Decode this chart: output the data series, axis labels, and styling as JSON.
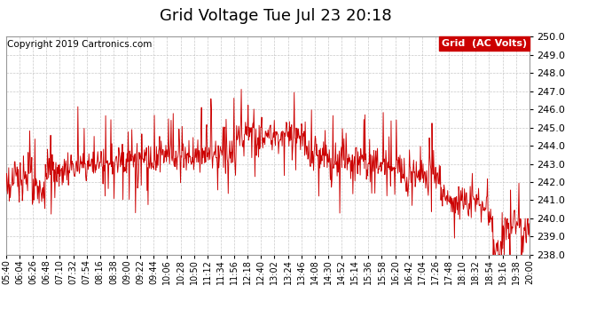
{
  "title": "Grid Voltage Tue Jul 23 20:18",
  "copyright": "Copyright 2019 Cartronics.com",
  "legend_label": "Grid  (AC Volts)",
  "legend_bg": "#cc0000",
  "legend_text_color": "#ffffff",
  "line_color": "#cc0000",
  "bg_color": "#ffffff",
  "plot_bg_color": "#ffffff",
  "grid_color": "#bbbbbb",
  "ylim": [
    238.0,
    250.0
  ],
  "yticks": [
    238.0,
    239.0,
    240.0,
    241.0,
    242.0,
    243.0,
    244.0,
    245.0,
    246.0,
    247.0,
    248.0,
    249.0,
    250.0
  ],
  "xtick_labels": [
    "05:40",
    "06:04",
    "06:26",
    "06:48",
    "07:10",
    "07:32",
    "07:54",
    "08:16",
    "08:38",
    "09:00",
    "09:22",
    "09:44",
    "10:06",
    "10:28",
    "10:50",
    "11:12",
    "11:34",
    "11:56",
    "12:18",
    "12:40",
    "13:02",
    "13:24",
    "13:46",
    "14:08",
    "14:30",
    "14:52",
    "15:14",
    "15:36",
    "15:58",
    "16:20",
    "16:42",
    "17:04",
    "17:26",
    "17:48",
    "18:10",
    "18:32",
    "18:54",
    "19:16",
    "19:38",
    "20:00"
  ],
  "title_fontsize": 13,
  "tick_fontsize": 7,
  "ytick_fontsize": 8,
  "copyright_fontsize": 7.5
}
